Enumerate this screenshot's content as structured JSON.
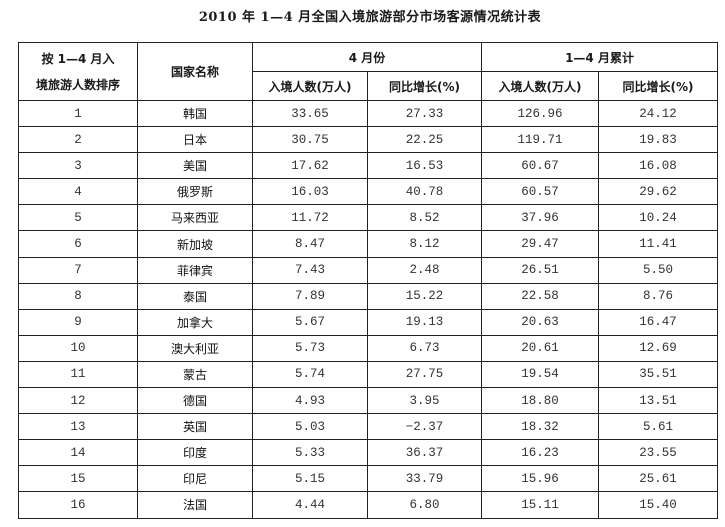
{
  "title": "2010 年 1—4 月全国入境旅游部分市场客源情况统计表",
  "header": {
    "rank": "按 1—4 月入境旅游人数排序",
    "country": "国家名称",
    "april": "4 月份",
    "cumulative": "1—4 月累计",
    "visitors": "入境人数(万人)",
    "growth": "同比增长(%)"
  },
  "rows": [
    {
      "rank": "1",
      "country": "韩国",
      "apr_visitors": "33.65",
      "apr_growth": "27.33",
      "cum_visitors": "126.96",
      "cum_growth": "24.12"
    },
    {
      "rank": "2",
      "country": "日本",
      "apr_visitors": "30.75",
      "apr_growth": "22.25",
      "cum_visitors": "119.71",
      "cum_growth": "19.83"
    },
    {
      "rank": "3",
      "country": "美国",
      "apr_visitors": "17.62",
      "apr_growth": "16.53",
      "cum_visitors": "60.67",
      "cum_growth": "16.08"
    },
    {
      "rank": "4",
      "country": "俄罗斯",
      "apr_visitors": "16.03",
      "apr_growth": "40.78",
      "cum_visitors": "60.57",
      "cum_growth": "29.62"
    },
    {
      "rank": "5",
      "country": "马来西亚",
      "apr_visitors": "11.72",
      "apr_growth": "8.52",
      "cum_visitors": "37.96",
      "cum_growth": "10.24"
    },
    {
      "rank": "6",
      "country": "新加坡",
      "apr_visitors": "8.47",
      "apr_growth": "8.12",
      "cum_visitors": "29.47",
      "cum_growth": "11.41"
    },
    {
      "rank": "7",
      "country": "菲律宾",
      "apr_visitors": "7.43",
      "apr_growth": "2.48",
      "cum_visitors": "26.51",
      "cum_growth": "5.50"
    },
    {
      "rank": "8",
      "country": "泰国",
      "apr_visitors": "7.89",
      "apr_growth": "15.22",
      "cum_visitors": "22.58",
      "cum_growth": "8.76"
    },
    {
      "rank": "9",
      "country": "加拿大",
      "apr_visitors": "5.67",
      "apr_growth": "19.13",
      "cum_visitors": "20.63",
      "cum_growth": "16.47"
    },
    {
      "rank": "10",
      "country": "澳大利亚",
      "apr_visitors": "5.73",
      "apr_growth": "6.73",
      "cum_visitors": "20.61",
      "cum_growth": "12.69"
    },
    {
      "rank": "11",
      "country": "蒙古",
      "apr_visitors": "5.74",
      "apr_growth": "27.75",
      "cum_visitors": "19.54",
      "cum_growth": "35.51"
    },
    {
      "rank": "12",
      "country": "德国",
      "apr_visitors": "4.93",
      "apr_growth": "3.95",
      "cum_visitors": "18.80",
      "cum_growth": "13.51"
    },
    {
      "rank": "13",
      "country": "英国",
      "apr_visitors": "5.03",
      "apr_growth": "−2.37",
      "cum_visitors": "18.32",
      "cum_growth": "5.61"
    },
    {
      "rank": "14",
      "country": "印度",
      "apr_visitors": "5.33",
      "apr_growth": "36.37",
      "cum_visitors": "16.23",
      "cum_growth": "23.55"
    },
    {
      "rank": "15",
      "country": "印尼",
      "apr_visitors": "5.15",
      "apr_growth": "33.79",
      "cum_visitors": "15.96",
      "cum_growth": "25.61"
    },
    {
      "rank": "16",
      "country": "法国",
      "apr_visitors": "4.44",
      "apr_growth": "6.80",
      "cum_visitors": "15.11",
      "cum_growth": "15.40"
    }
  ]
}
